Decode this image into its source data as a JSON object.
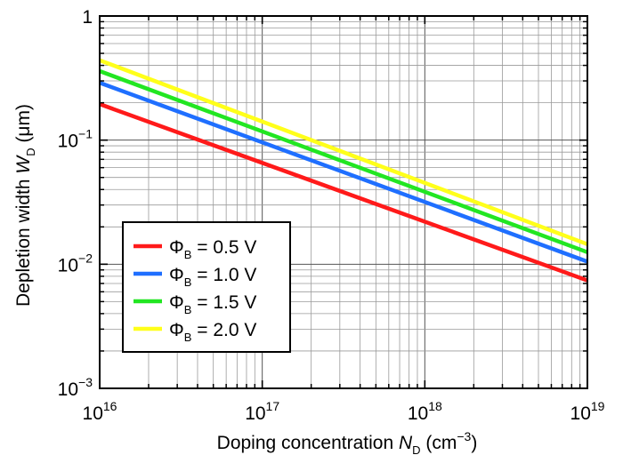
{
  "chart_data": {
    "type": "line",
    "title": "",
    "xscale": "log",
    "yscale": "log",
    "xlim": [
      1e+16,
      1e+19
    ],
    "ylim": [
      0.001,
      1
    ],
    "grid": true,
    "legend_position": "bottom-left",
    "x_ticks": [
      {
        "value": 1e+16,
        "base": "10",
        "exp": "16"
      },
      {
        "value": 1e+17,
        "base": "10",
        "exp": "17"
      },
      {
        "value": 1e+18,
        "base": "10",
        "exp": "18"
      },
      {
        "value": 1e+19,
        "base": "10",
        "exp": "19"
      }
    ],
    "y_ticks": [
      {
        "value": 0.001,
        "base": "10",
        "exp": "−3"
      },
      {
        "value": 0.01,
        "base": "10",
        "exp": "−2"
      },
      {
        "value": 0.1,
        "base": "10",
        "exp": "−1"
      },
      {
        "value": 1,
        "base": "1",
        "exp": ""
      }
    ],
    "xlabel": {
      "text": "Doping concentration ",
      "var": "N",
      "sub": "D",
      "unit_open": " (cm",
      "sup": "−3",
      "unit_close": ")"
    },
    "ylabel": {
      "text": "Depletion width ",
      "var": "W",
      "sub": "D",
      "unit": " (μm)"
    },
    "x": [
      1e+16,
      1e+19
    ],
    "series": [
      {
        "symbol": "Φ",
        "sub": "B",
        "value_text": " = 0.5 V",
        "color": "#ff1a1a",
        "y": [
          0.195,
          0.0074
        ]
      },
      {
        "symbol": "Φ",
        "sub": "B",
        "value_text": " = 1.0 V",
        "color": "#1f6fff",
        "y": [
          0.29,
          0.0105
        ]
      },
      {
        "symbol": "Φ",
        "sub": "B",
        "value_text": " = 1.5 V",
        "color": "#22e622",
        "y": [
          0.36,
          0.0125
        ]
      },
      {
        "symbol": "Φ",
        "sub": "B",
        "value_text": " = 2.0 V",
        "color": "#ffff1a",
        "y": [
          0.44,
          0.0145
        ]
      }
    ]
  }
}
